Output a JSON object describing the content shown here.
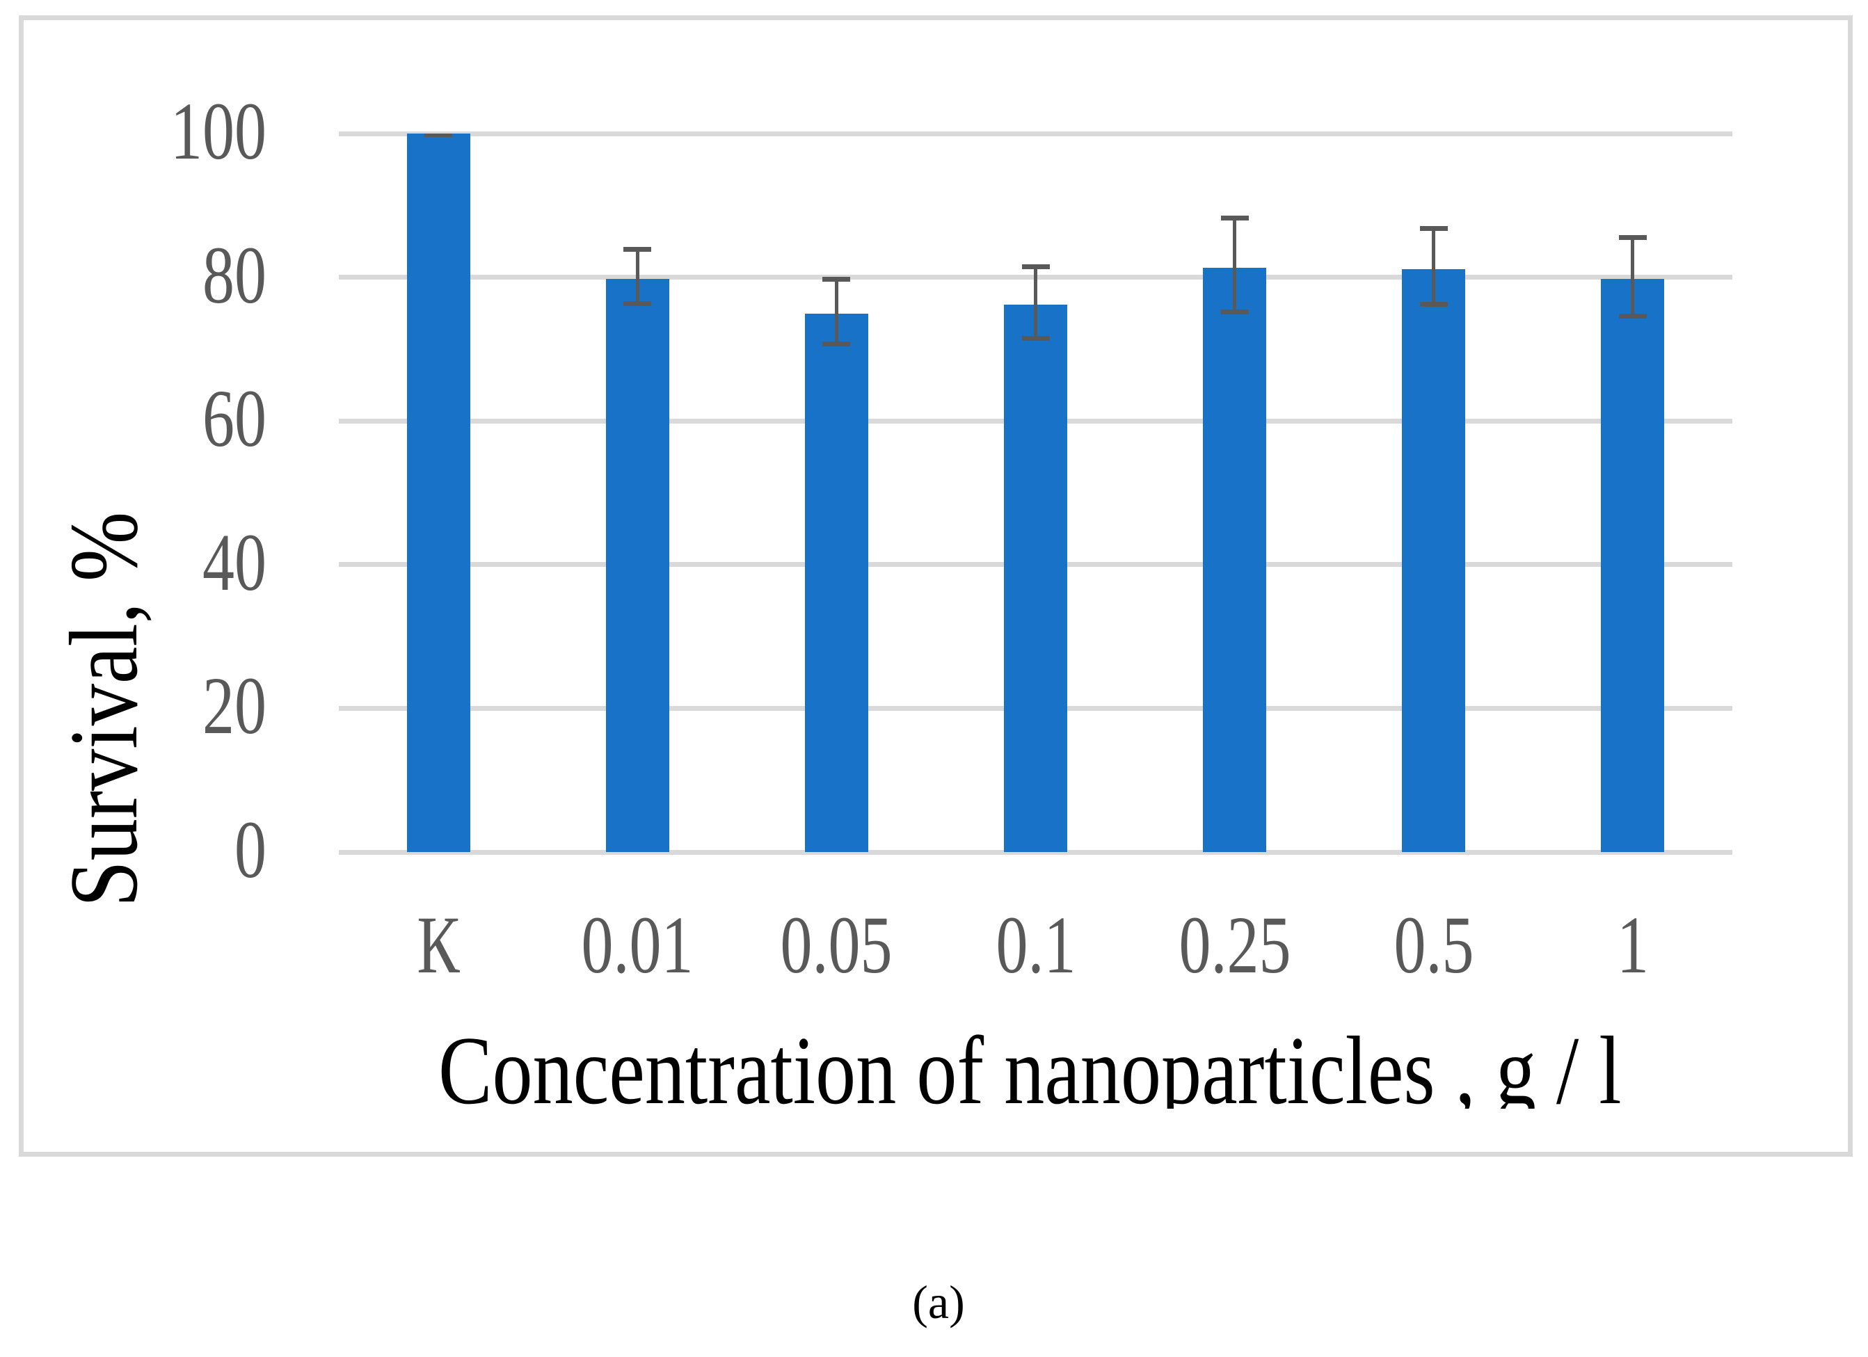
{
  "figure": {
    "caption": "(a)",
    "colors": {
      "bar": "#1872c8",
      "error_bar": "#595959",
      "gridline": "#d9d9d9",
      "frame": "#d9d9d9",
      "tick_text": "#595959",
      "title_text": "#000000",
      "spellcheck_underline": "#e00000"
    }
  },
  "chart_data": {
    "type": "bar",
    "title": "",
    "xlabel": "Concentration of nanoparticles , g / l",
    "xlabel_parts": {
      "before": "Concentration ",
      "underlined": "of nanoparticles ",
      "after": ", g / l"
    },
    "ylabel": "Survival, %",
    "categories": [
      "К",
      "0.01",
      "0.05",
      "0.1",
      "0.25",
      "0.5",
      "1"
    ],
    "values": [
      100,
      79.8,
      74.9,
      76.2,
      81.3,
      81.1,
      79.8
    ],
    "error_upper": [
      100,
      83.9,
      79.7,
      81.5,
      88.2,
      86.8,
      85.5
    ],
    "error_lower": [
      100,
      76.3,
      70.7,
      71.5,
      75.2,
      76.2,
      74.6
    ],
    "ylim": [
      0,
      100
    ],
    "yticks": [
      0,
      20,
      40,
      60,
      80,
      100
    ],
    "grid": true,
    "legend": null
  }
}
